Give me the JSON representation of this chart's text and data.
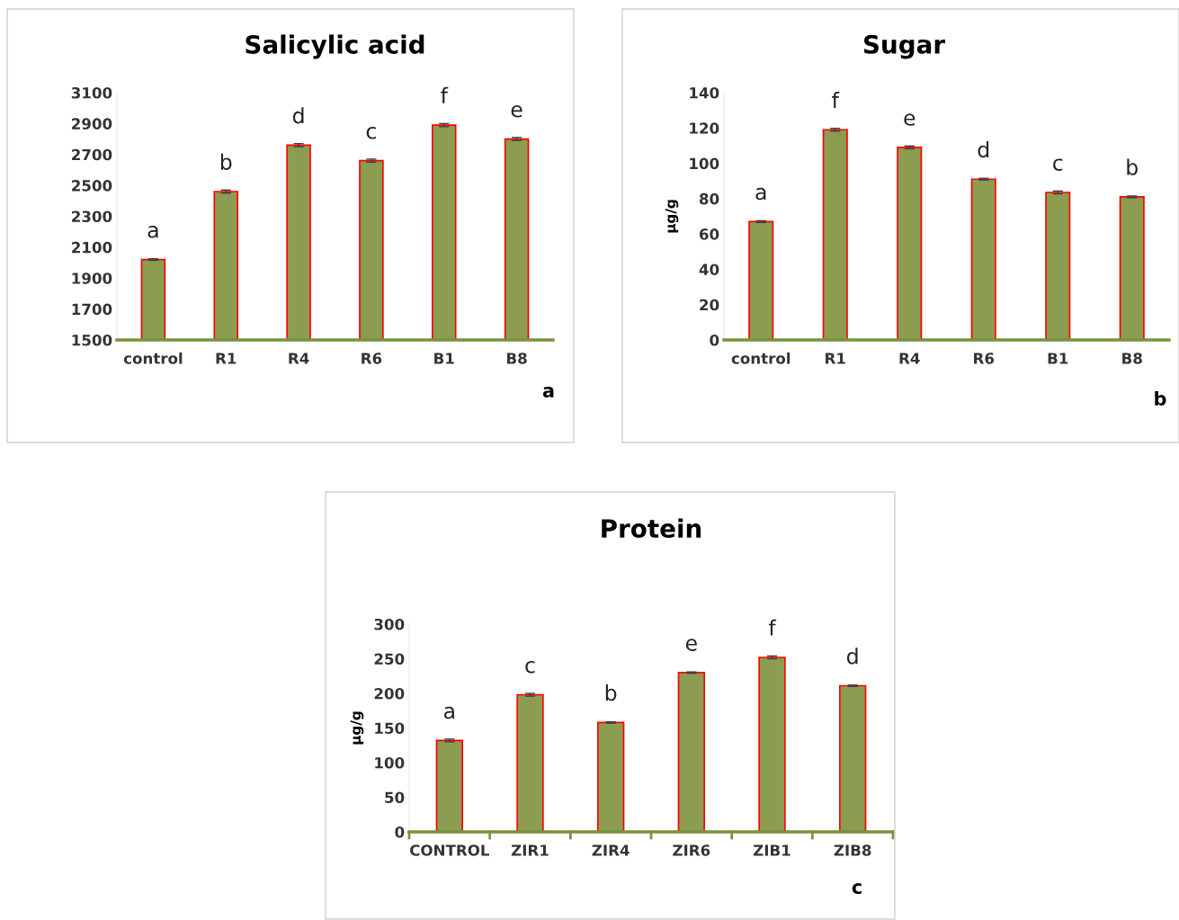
{
  "chart_data": [
    {
      "type": "bar",
      "title": "Salicylic acid",
      "categories": [
        "control",
        "R1",
        "R4",
        "R6",
        "B1",
        "B8"
      ],
      "values": [
        2020,
        2460,
        2760,
        2660,
        2890,
        2800
      ],
      "errors": [
        5,
        10,
        10,
        10,
        10,
        10
      ],
      "color": "#8c9c50",
      "ylim": [
        1500,
        3100
      ],
      "yticks": [
        1500,
        1700,
        1900,
        2100,
        2300,
        2500,
        2700,
        2900,
        3100
      ],
      "grid": false,
      "legend": false,
      "value_labels": [
        "a",
        "b",
        "d",
        "c",
        "f",
        "e"
      ],
      "annotations": [
        "a"
      ]
    },
    {
      "type": "bar",
      "title": "Sugar",
      "ylabel": "µg/g",
      "categories": [
        "control",
        "R1",
        "R4",
        "R6",
        "B1",
        "B8"
      ],
      "values": [
        67,
        119,
        109,
        91,
        83.5,
        81
      ],
      "errors": [
        0.5,
        0.8,
        0.8,
        0.5,
        0.8,
        0.5
      ],
      "color": "#8c9c50",
      "ylim": [
        0,
        140
      ],
      "yticks": [
        0,
        20,
        40,
        60,
        80,
        100,
        120,
        140
      ],
      "grid": false,
      "legend": false,
      "value_labels": [
        "a",
        "f",
        "e",
        "d",
        "c",
        "b"
      ],
      "annotations": [
        "b"
      ]
    },
    {
      "type": "bar",
      "title": "Protein",
      "ylabel": "µg/g",
      "categories": [
        "CONTROL",
        "ZIR1",
        "ZIR4",
        "ZIR6",
        "ZIB1",
        "ZIB8"
      ],
      "values": [
        132,
        198,
        158,
        230,
        252,
        211
      ],
      "errors": [
        2,
        2,
        1,
        1,
        2,
        1
      ],
      "color": "#8c9c50",
      "ylim": [
        0,
        300
      ],
      "yticks": [
        0,
        50,
        100,
        150,
        200,
        250,
        300
      ],
      "grid": false,
      "legend": false,
      "value_labels": [
        "a",
        "c",
        "b",
        "e",
        "f",
        "d"
      ],
      "annotations": [
        "c"
      ]
    }
  ]
}
